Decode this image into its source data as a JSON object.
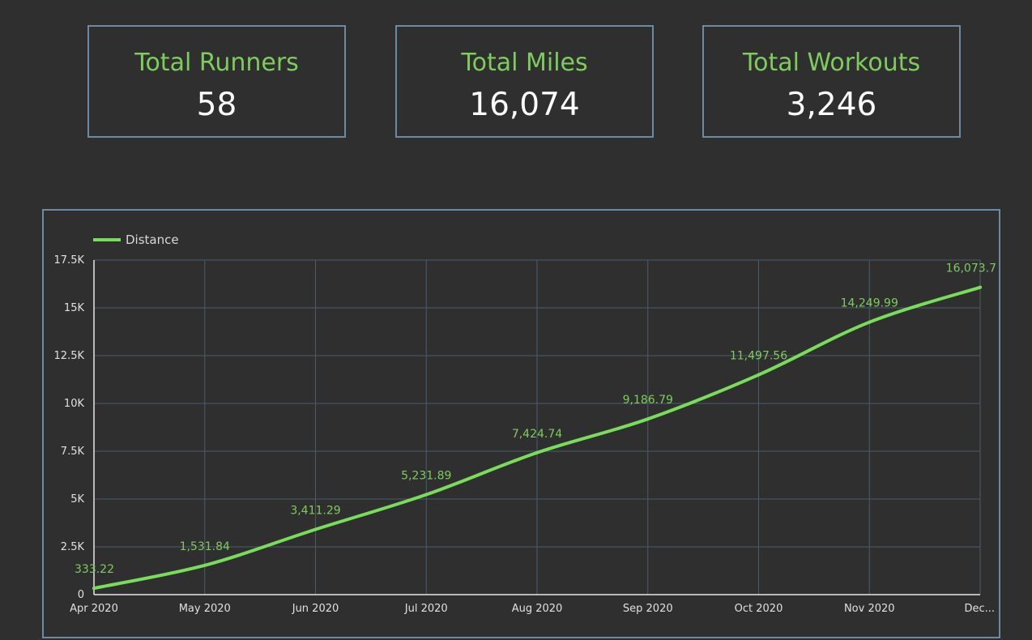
{
  "kpis": {
    "runners": {
      "label": "Total Runners",
      "value": "58"
    },
    "miles": {
      "label": "Total Miles",
      "value": "16,074"
    },
    "workouts": {
      "label": "Total Workouts",
      "value": "3,246"
    }
  },
  "colors": {
    "background": "#2f2f2f",
    "border": "#6e8aa0",
    "accent": "#7ccd5b",
    "line": "#77dd5a",
    "grid": "#4d5b68",
    "text": "#ffffff"
  },
  "chart_data": {
    "type": "line",
    "legend": {
      "position": "top-left"
    },
    "grid": true,
    "categories": [
      "Apr 2020",
      "May 2020",
      "Jun 2020",
      "Jul 2020",
      "Aug 2020",
      "Sep 2020",
      "Oct 2020",
      "Nov 2020",
      "Dec..."
    ],
    "series": [
      {
        "name": "Distance",
        "values": [
          333.22,
          1531.84,
          3411.29,
          5231.89,
          7424.74,
          9186.79,
          11497.56,
          14249.99,
          16073.7
        ],
        "labels": [
          "333.22",
          "1,531.84",
          "3,411.29",
          "5,231.89",
          "7,424.74",
          "9,186.79",
          "11,497.56",
          "14,249.99",
          "16,073.7"
        ]
      }
    ],
    "ylim": [
      0,
      17500
    ],
    "yticks": [
      0,
      2500,
      5000,
      7500,
      10000,
      12500,
      15000,
      17500
    ],
    "ytick_labels": [
      "0",
      "2.5K",
      "5K",
      "7.5K",
      "10K",
      "12.5K",
      "15K",
      "17.5K"
    ]
  }
}
